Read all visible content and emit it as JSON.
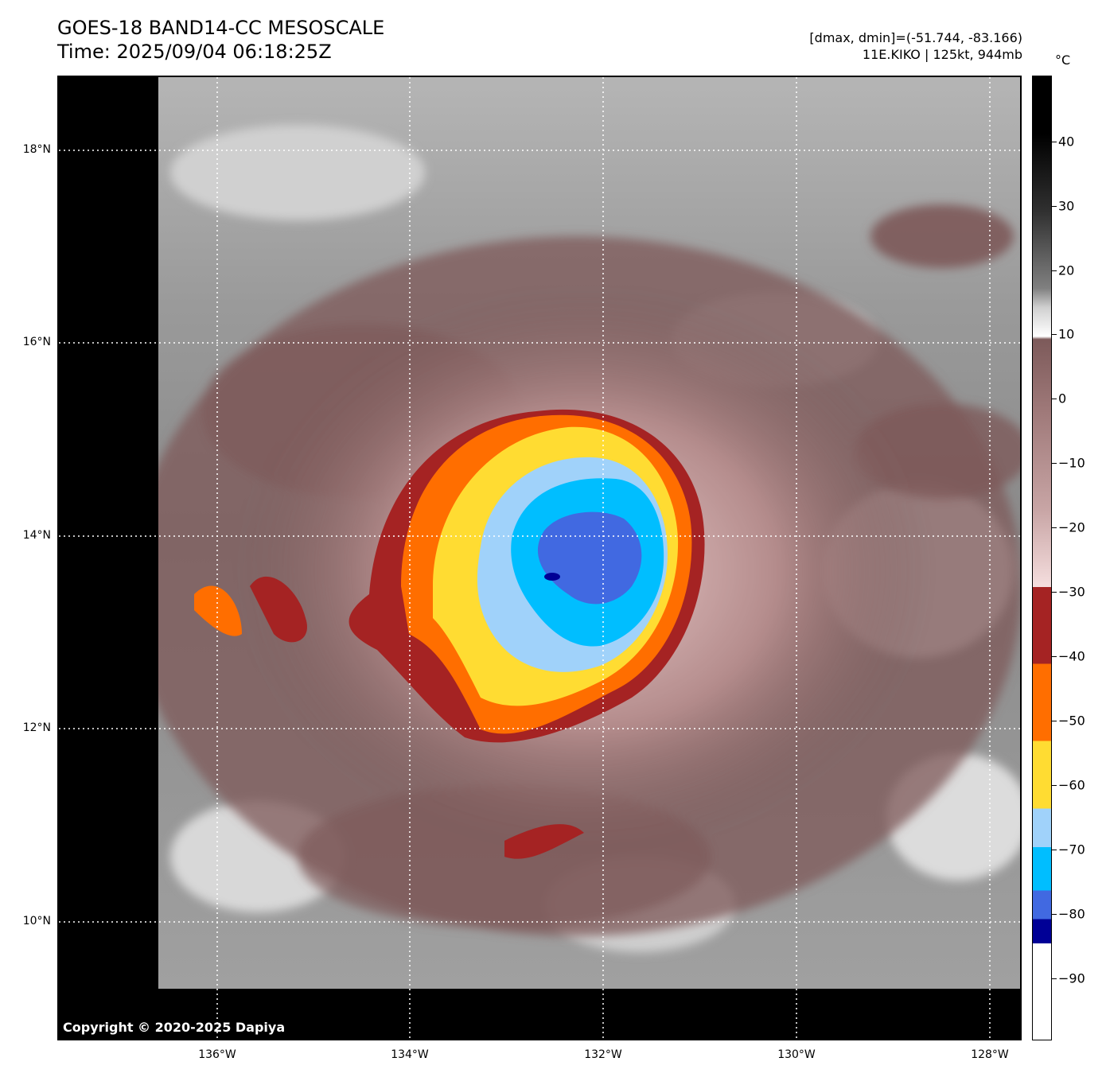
{
  "header": {
    "title_line1": "GOES-18 BAND14-CC MESOSCALE",
    "title_line2": "Time: 2025/09/04 06:18:25Z",
    "range_text": "[dmax, dmin]=(-51.744, -83.166)",
    "storm_text": "11E.KIKO | 125kt, 944mb"
  },
  "map": {
    "copyright": "Copyright © 2020-2025 Dapiya",
    "lat_labels": [
      "18°N",
      "16°N",
      "14°N",
      "12°N",
      "10°N"
    ],
    "lon_labels": [
      "136°W",
      "134°W",
      "132°W",
      "130°W",
      "128°W"
    ],
    "storm_name": "KIKO",
    "storm_location": {
      "lat": 13.6,
      "lon": -132.6
    }
  },
  "colorbar": {
    "unit": "°C",
    "ticks": [
      "40",
      "30",
      "20",
      "10",
      "0",
      "−10",
      "−20",
      "−30",
      "−40",
      "−50",
      "−60",
      "−70",
      "−80",
      "−90"
    ],
    "colors": {
      "black": "#000000",
      "white": "#ffffff",
      "brown": "#7d5a5a",
      "pink": "#f5dede",
      "dark_red": "#a52323",
      "orange": "#ff6e00",
      "yellow": "#ffdc32",
      "light_blue": "#a0d2fa",
      "cyan": "#00beff",
      "royal_blue": "#4169e1",
      "navy": "#000096"
    }
  }
}
